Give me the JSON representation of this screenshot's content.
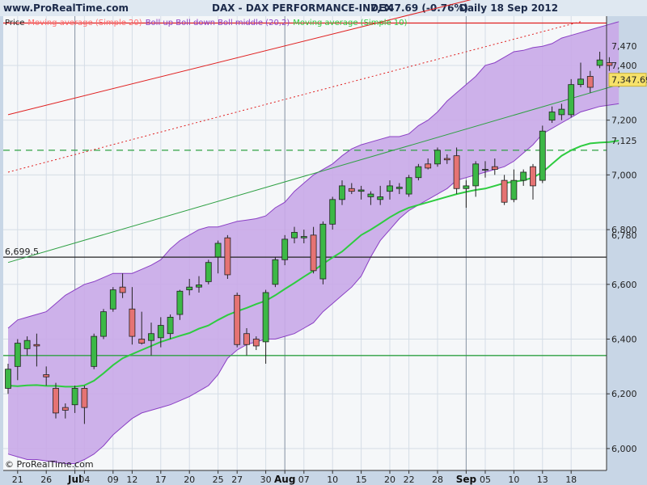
{
  "header": {
    "site": "www.ProRealTime.com",
    "instrument": "DAX - DAX PERFORMANCE-INDEX",
    "price_change": "7,347.69 (-0.76%)",
    "period_date": "Daily  18 Sep 2012"
  },
  "watermark": "© ProRealTime.com",
  "chart_data": {
    "type": "candlestick",
    "instrument": "DAX - DAX PERFORMANCE-INDEX",
    "period": "Daily",
    "date": "18 Sep 2012",
    "last": 7347.69,
    "change_pct": -0.76,
    "ylim": [
      5920,
      7580
    ],
    "grid": true,
    "legend": [
      {
        "label": "Price",
        "color": "#222222"
      },
      {
        "label": "Moving average (Simple 20)",
        "color": "#ff6b6b"
      },
      {
        "label": "Boll up Boll down Boll middle (20,2)",
        "color": "#8a3fc4"
      },
      {
        "label": "Moving average (Simple 10)",
        "color": "#2ecc40"
      }
    ],
    "y_ticks": [
      {
        "label": "6,000",
        "value": 6000
      },
      {
        "label": "6,200",
        "value": 6200
      },
      {
        "label": "6,400",
        "value": 6400
      },
      {
        "label": "6,600",
        "value": 6600
      },
      {
        "label": "6,800",
        "value": 6800
      },
      {
        "label": "7,000",
        "value": 7000
      },
      {
        "label": "7,200",
        "value": 7200
      },
      {
        "label": "7,400",
        "value": 7400
      }
    ],
    "x_ticks": [
      {
        "i": 1,
        "label": "21"
      },
      {
        "i": 4,
        "label": "26"
      },
      {
        "i": 7,
        "label": "Jul",
        "month": true
      },
      {
        "i": 8,
        "label": "04"
      },
      {
        "i": 11,
        "label": "09"
      },
      {
        "i": 13,
        "label": "12"
      },
      {
        "i": 16,
        "label": "17"
      },
      {
        "i": 19,
        "label": "20"
      },
      {
        "i": 22,
        "label": "25"
      },
      {
        "i": 24,
        "label": "27"
      },
      {
        "i": 27,
        "label": "30"
      },
      {
        "i": 29,
        "label": "Aug",
        "month": true
      },
      {
        "i": 31,
        "label": "07"
      },
      {
        "i": 34,
        "label": "10"
      },
      {
        "i": 37,
        "label": "15"
      },
      {
        "i": 40,
        "label": "20"
      },
      {
        "i": 42,
        "label": "22"
      },
      {
        "i": 45,
        "label": "28"
      },
      {
        "i": 48,
        "label": "Sep",
        "month": true
      },
      {
        "i": 50,
        "label": "05"
      },
      {
        "i": 53,
        "label": "10"
      },
      {
        "i": 56,
        "label": "13"
      },
      {
        "i": 59,
        "label": "18"
      }
    ],
    "month_separators": [
      7,
      29,
      48
    ],
    "candles": [
      {
        "o": 6220,
        "h": 6310,
        "l": 6200,
        "c": 6290
      },
      {
        "o": 6300,
        "h": 6400,
        "l": 6250,
        "c": 6385
      },
      {
        "o": 6365,
        "h": 6410,
        "l": 6340,
        "c": 6395
      },
      {
        "o": 6380,
        "h": 6420,
        "l": 6300,
        "c": 6375
      },
      {
        "o": 6270,
        "h": 6300,
        "l": 6230,
        "c": 6262
      },
      {
        "o": 6220,
        "h": 6240,
        "l": 6110,
        "c": 6130
      },
      {
        "o": 6150,
        "h": 6165,
        "l": 6110,
        "c": 6140
      },
      {
        "o": 6160,
        "h": 6230,
        "l": 6130,
        "c": 6220
      },
      {
        "o": 6220,
        "h": 6230,
        "l": 6090,
        "c": 6150
      },
      {
        "o": 6300,
        "h": 6420,
        "l": 6290,
        "c": 6410
      },
      {
        "o": 6410,
        "h": 6510,
        "l": 6400,
        "c": 6500
      },
      {
        "o": 6510,
        "h": 6590,
        "l": 6500,
        "c": 6580
      },
      {
        "o": 6590,
        "h": 6640,
        "l": 6550,
        "c": 6570
      },
      {
        "o": 6510,
        "h": 6590,
        "l": 6380,
        "c": 6410
      },
      {
        "o": 6400,
        "h": 6500,
        "l": 6380,
        "c": 6385
      },
      {
        "o": 6395,
        "h": 6460,
        "l": 6340,
        "c": 6420
      },
      {
        "o": 6405,
        "h": 6480,
        "l": 6370,
        "c": 6450
      },
      {
        "o": 6420,
        "h": 6490,
        "l": 6400,
        "c": 6480
      },
      {
        "o": 6490,
        "h": 6580,
        "l": 6470,
        "c": 6575
      },
      {
        "o": 6580,
        "h": 6620,
        "l": 6560,
        "c": 6590
      },
      {
        "o": 6590,
        "h": 6630,
        "l": 6570,
        "c": 6598
      },
      {
        "o": 6610,
        "h": 6690,
        "l": 6600,
        "c": 6680
      },
      {
        "o": 6700,
        "h": 6760,
        "l": 6640,
        "c": 6750
      },
      {
        "o": 6770,
        "h": 6780,
        "l": 6620,
        "c": 6635
      },
      {
        "o": 6560,
        "h": 6570,
        "l": 6370,
        "c": 6380
      },
      {
        "o": 6420,
        "h": 6440,
        "l": 6340,
        "c": 6380
      },
      {
        "o": 6400,
        "h": 6410,
        "l": 6360,
        "c": 6375
      },
      {
        "o": 6390,
        "h": 6580,
        "l": 6310,
        "c": 6570
      },
      {
        "o": 6600,
        "h": 6700,
        "l": 6590,
        "c": 6690
      },
      {
        "o": 6690,
        "h": 6780,
        "l": 6670,
        "c": 6765
      },
      {
        "o": 6770,
        "h": 6810,
        "l": 6750,
        "c": 6790
      },
      {
        "o": 6770,
        "h": 6800,
        "l": 6750,
        "c": 6775
      },
      {
        "o": 6780,
        "h": 6810,
        "l": 6640,
        "c": 6650
      },
      {
        "o": 6620,
        "h": 6830,
        "l": 6600,
        "c": 6820
      },
      {
        "o": 6820,
        "h": 6920,
        "l": 6800,
        "c": 6910
      },
      {
        "o": 6910,
        "h": 6980,
        "l": 6890,
        "c": 6960
      },
      {
        "o": 6950,
        "h": 6970,
        "l": 6930,
        "c": 6940
      },
      {
        "o": 6940,
        "h": 6960,
        "l": 6910,
        "c": 6945
      },
      {
        "o": 6920,
        "h": 6940,
        "l": 6890,
        "c": 6930
      },
      {
        "o": 6910,
        "h": 6960,
        "l": 6890,
        "c": 6920
      },
      {
        "o": 6940,
        "h": 6980,
        "l": 6910,
        "c": 6960
      },
      {
        "o": 6950,
        "h": 6970,
        "l": 6930,
        "c": 6955
      },
      {
        "o": 6930,
        "h": 7000,
        "l": 6920,
        "c": 6990
      },
      {
        "o": 6990,
        "h": 7040,
        "l": 6980,
        "c": 7030
      },
      {
        "o": 7040,
        "h": 7060,
        "l": 7020,
        "c": 7025
      },
      {
        "o": 7040,
        "h": 7100,
        "l": 7030,
        "c": 7090
      },
      {
        "o": 7060,
        "h": 7075,
        "l": 7040,
        "c": 7055
      },
      {
        "o": 7070,
        "h": 7100,
        "l": 6930,
        "c": 6950
      },
      {
        "o": 6950,
        "h": 6980,
        "l": 6880,
        "c": 6960
      },
      {
        "o": 6960,
        "h": 7050,
        "l": 6920,
        "c": 7040
      },
      {
        "o": 7020,
        "h": 7050,
        "l": 6990,
        "c": 7020
      },
      {
        "o": 7030,
        "h": 7060,
        "l": 7000,
        "c": 7020
      },
      {
        "o": 6980,
        "h": 7000,
        "l": 6890,
        "c": 6900
      },
      {
        "o": 6910,
        "h": 7020,
        "l": 6900,
        "c": 6980
      },
      {
        "o": 6980,
        "h": 7020,
        "l": 6960,
        "c": 7010
      },
      {
        "o": 7030,
        "h": 7040,
        "l": 6910,
        "c": 6960
      },
      {
        "o": 6980,
        "h": 7180,
        "l": 6970,
        "c": 7160
      },
      {
        "o": 7200,
        "h": 7250,
        "l": 7190,
        "c": 7230
      },
      {
        "o": 7220,
        "h": 7260,
        "l": 7200,
        "c": 7240
      },
      {
        "o": 7220,
        "h": 7350,
        "l": 7210,
        "c": 7330
      },
      {
        "o": 7330,
        "h": 7410,
        "l": 7320,
        "c": 7350
      },
      {
        "o": 7360,
        "h": 7380,
        "l": 7300,
        "c": 7320
      },
      {
        "o": 7400,
        "h": 7450,
        "l": 7390,
        "c": 7420
      },
      {
        "o": 7410,
        "h": 7430,
        "l": 7380,
        "c": 7400
      },
      {
        "o": 7350,
        "h": 7380,
        "l": 7320,
        "c": 7347.69
      }
    ],
    "ma20": [
      6200,
      6195,
      6198,
      6200,
      6205,
      6210,
      6220,
      6240,
      6270,
      6300,
      6330,
      6350,
      6365,
      6380,
      6400,
      6420,
      6450,
      6470,
      6500,
      6520,
      6540,
      6550,
      6560,
      6575,
      6590,
      6610,
      6630,
      6660,
      6690,
      6720,
      6760,
      6800,
      6830,
      6870,
      6900,
      6920,
      6950,
      6970,
      7000,
      7020,
      7040,
      7060,
      7080,
      7100,
      7120,
      7140,
      7150,
      7160,
      7170,
      7180,
      7190,
      7200,
      7215,
      7230,
      7240,
      7250,
      7262,
      7275,
      7290,
      7305,
      7320,
      7335,
      7350,
      7365,
      7380
    ],
    "boll_mid": [
      6210,
      6205,
      6210,
      6215,
      6220,
      6230,
      6245,
      6265,
      6290,
      6310,
      6330,
      6345,
      6360,
      6370,
      6380,
      6395,
      6410,
      6430,
      6450,
      6470,
      6490,
      6500,
      6515,
      6530,
      6550,
      6580,
      6610,
      6630,
      6660,
      6690,
      6720,
      6760,
      6790,
      6820,
      6850,
      6870,
      6890,
      6910,
      6930,
      6950,
      6960,
      6975,
      6985,
      7000,
      7010,
      7020,
      7040,
      7060,
      7080,
      7100,
      7120,
      7140,
      7155,
      7165,
      7180,
      7195,
      7210,
      7235,
      7260,
      7285,
      7300,
      7312,
      7322,
      7330,
      7335
    ],
    "boll_up": [
      6440,
      6470,
      6480,
      6490,
      6500,
      6530,
      6560,
      6580,
      6600,
      6610,
      6625,
      6640,
      6640,
      6640,
      6655,
      6670,
      6690,
      6730,
      6760,
      6780,
      6800,
      6810,
      6810,
      6820,
      6830,
      6835,
      6840,
      6850,
      6880,
      6900,
      6940,
      6970,
      7000,
      7020,
      7040,
      7070,
      7095,
      7110,
      7120,
      7130,
      7140,
      7140,
      7150,
      7180,
      7200,
      7230,
      7270,
      7300,
      7330,
      7360,
      7400,
      7410,
      7430,
      7450,
      7455,
      7465,
      7470,
      7480,
      7500,
      7510,
      7520,
      7530,
      7540,
      7550,
      7560
    ],
    "boll_dn": [
      5980,
      5970,
      5960,
      5960,
      5955,
      5950,
      5945,
      5945,
      5960,
      5980,
      6010,
      6050,
      6080,
      6110,
      6130,
      6140,
      6150,
      6160,
      6175,
      6190,
      6210,
      6230,
      6270,
      6330,
      6360,
      6380,
      6390,
      6400,
      6400,
      6410,
      6420,
      6440,
      6460,
      6500,
      6530,
      6560,
      6590,
      6630,
      6700,
      6760,
      6800,
      6840,
      6870,
      6890,
      6910,
      6930,
      6950,
      6980,
      6990,
      7000,
      7010,
      7020,
      7030,
      7050,
      7080,
      7110,
      7150,
      7170,
      7190,
      7210,
      7230,
      7240,
      7250,
      7255,
      7260
    ],
    "ma10_green": [
      6230,
      6228,
      6231,
      6232,
      6229,
      6229,
      6226,
      6226,
      6231,
      6248,
      6275,
      6305,
      6330,
      6345,
      6360,
      6375,
      6390,
      6401,
      6412,
      6422,
      6438,
      6450,
      6470,
      6488,
      6502,
      6514,
      6528,
      6540,
      6560,
      6583,
      6605,
      6628,
      6650,
      6675,
      6698,
      6720,
      6750,
      6780,
      6800,
      6822,
      6845,
      6865,
      6880,
      6890,
      6900,
      6910,
      6920,
      6930,
      6938,
      6945,
      6950,
      6960,
      6970,
      6975,
      6980,
      6990,
      7010,
      7040,
      7070,
      7090,
      7105,
      7115,
      7118,
      7120,
      7125
    ],
    "value_tags": [
      {
        "label": "7,470",
        "value": 7470,
        "color": "#8a3fc4"
      },
      {
        "label": "7,347.69",
        "value": 7347.69,
        "color": "#222222"
      },
      {
        "label": "7,125",
        "value": 7125,
        "color": "#2ecc40"
      },
      {
        "label": "6,780",
        "value": 6780,
        "color": "#8a3fc4"
      }
    ],
    "horizontal_lines": [
      {
        "value": 7555,
        "color": "#e02020",
        "style": "solid"
      },
      {
        "value": 6699.5,
        "color": "#222222",
        "style": "solid",
        "label": "6,699.5"
      },
      {
        "value": 7090,
        "color": "#2ea043",
        "style": "dashed"
      },
      {
        "value": 6340,
        "color": "#2ea043",
        "style": "solid"
      }
    ],
    "trendlines": [
      {
        "from": [
          0,
          7220
        ],
        "to": [
          60,
          7740
        ],
        "color": "#e02020",
        "style": "solid"
      },
      {
        "from": [
          0,
          7010
        ],
        "to": [
          60,
          7560
        ],
        "color": "#e02020",
        "style": "dotted"
      },
      {
        "from": [
          0,
          6680
        ],
        "to": [
          64,
          7330
        ],
        "color": "#2ea043",
        "style": "solid"
      }
    ],
    "colors": {
      "up": "#3cb846",
      "down": "#e57373",
      "band_fill": "#c9a9e8",
      "band_edge": "#8a3fc4",
      "ma": "#2ecc40",
      "plot_bg": "#f5f7f9",
      "grid": "#d5dde6"
    }
  }
}
